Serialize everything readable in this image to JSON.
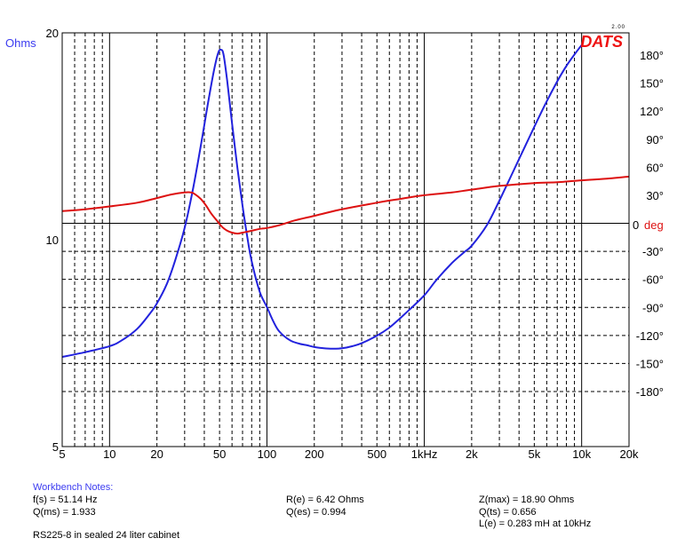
{
  "chart_data": {
    "type": "line",
    "title": "",
    "brand": "DATS",
    "version": "2.00",
    "xlabel": "",
    "x_scale": "log",
    "xlim": [
      5,
      20000
    ],
    "x_ticks": [
      {
        "value": 5,
        "label": "5"
      },
      {
        "value": 10,
        "label": "10"
      },
      {
        "value": 20,
        "label": "20"
      },
      {
        "value": 50,
        "label": "50"
      },
      {
        "value": 100,
        "label": "100"
      },
      {
        "value": 200,
        "label": "200"
      },
      {
        "value": 500,
        "label": "500"
      },
      {
        "value": 1000,
        "label": "1kHz"
      },
      {
        "value": 2000,
        "label": "2k"
      },
      {
        "value": 5000,
        "label": "5k"
      },
      {
        "value": 10000,
        "label": "10k"
      },
      {
        "value": 20000,
        "label": "20k"
      }
    ],
    "y_left": {
      "label": "Ohms",
      "scale": "log",
      "ylim": [
        5,
        20
      ],
      "ticks": [
        {
          "value": 20,
          "label": "20"
        },
        {
          "value": 10,
          "label": "10"
        },
        {
          "value": 5,
          "label": "5"
        }
      ]
    },
    "y_right": {
      "label_value": "0",
      "label_unit": "deg",
      "ylim": [
        -180,
        180
      ],
      "ticks": [
        {
          "value": 180,
          "label": "180°"
        },
        {
          "value": 150,
          "label": "150°"
        },
        {
          "value": 120,
          "label": "120°"
        },
        {
          "value": 90,
          "label": "90°"
        },
        {
          "value": 60,
          "label": "60°"
        },
        {
          "value": 30,
          "label": "30°"
        },
        {
          "value": -30,
          "label": "-30°"
        },
        {
          "value": -60,
          "label": "-60°"
        },
        {
          "value": -90,
          "label": "-90°"
        },
        {
          "value": -120,
          "label": "-120°"
        },
        {
          "value": -150,
          "label": "-150°"
        },
        {
          "value": -180,
          "label": "-180°"
        }
      ]
    },
    "grid": true,
    "series": [
      {
        "key": "impedance",
        "axis": "left",
        "color": "#2222dd",
        "x": [
          5,
          7,
          10,
          12,
          15,
          18,
          20,
          23,
          26,
          30,
          34,
          38,
          42,
          46,
          49,
          51,
          53,
          56,
          60,
          65,
          70,
          75,
          80,
          90,
          100,
          110,
          120,
          140,
          160,
          180,
          200,
          230,
          260,
          300,
          350,
          400,
          500,
          600,
          700,
          800,
          1000,
          1200,
          1500,
          1800,
          2000,
          2500,
          3000,
          4000,
          5000,
          6000,
          7000,
          8000,
          9000,
          10000
        ],
        "y": [
          6.75,
          6.86,
          7.0,
          7.14,
          7.42,
          7.8,
          8.08,
          8.6,
          9.3,
          10.4,
          11.9,
          13.7,
          15.7,
          17.6,
          18.7,
          18.9,
          18.6,
          17.0,
          14.8,
          12.7,
          11.2,
          10.1,
          9.3,
          8.4,
          7.98,
          7.6,
          7.35,
          7.14,
          7.06,
          7.02,
          6.98,
          6.95,
          6.94,
          6.95,
          7.0,
          7.07,
          7.25,
          7.45,
          7.68,
          7.9,
          8.3,
          8.75,
          9.25,
          9.6,
          9.8,
          10.5,
          11.4,
          13.1,
          14.6,
          15.9,
          17.0,
          17.9,
          18.6,
          19.2
        ]
      },
      {
        "key": "phase",
        "axis": "right",
        "color": "#dd1111",
        "x": [
          5,
          7,
          10,
          15,
          20,
          25,
          30,
          33,
          35,
          38,
          41,
          44,
          48,
          52,
          56,
          60,
          65,
          70,
          75,
          80,
          90,
          100,
          120,
          150,
          200,
          300,
          500,
          700,
          1000,
          1500,
          2000,
          3000,
          5000,
          7000,
          10000,
          15000,
          20000
        ],
        "y": [
          13,
          15,
          18,
          22,
          27,
          31,
          33,
          33,
          31,
          26,
          19,
          11,
          3,
          -4,
          -8,
          -10,
          -11,
          -10,
          -9,
          -8,
          -6,
          -5,
          -2,
          3,
          8,
          15,
          22,
          26,
          30,
          33,
          36,
          40,
          43,
          44,
          46,
          48,
          50
        ]
      }
    ]
  },
  "notes": {
    "title": "Workbench Notes:",
    "fs": "f(s) = 51.14 Hz",
    "qms": "Q(ms) = 1.933",
    "re": "R(e) = 6.42 Ohms",
    "qes": "Q(es) = 0.994",
    "zmax": "Z(max) = 18.90 Ohms",
    "qts": "Q(ts) = 0.656",
    "le": "L(e) = 0.283 mH at 10kHz",
    "description": "RS225-8 in sealed 24 liter cabinet"
  }
}
